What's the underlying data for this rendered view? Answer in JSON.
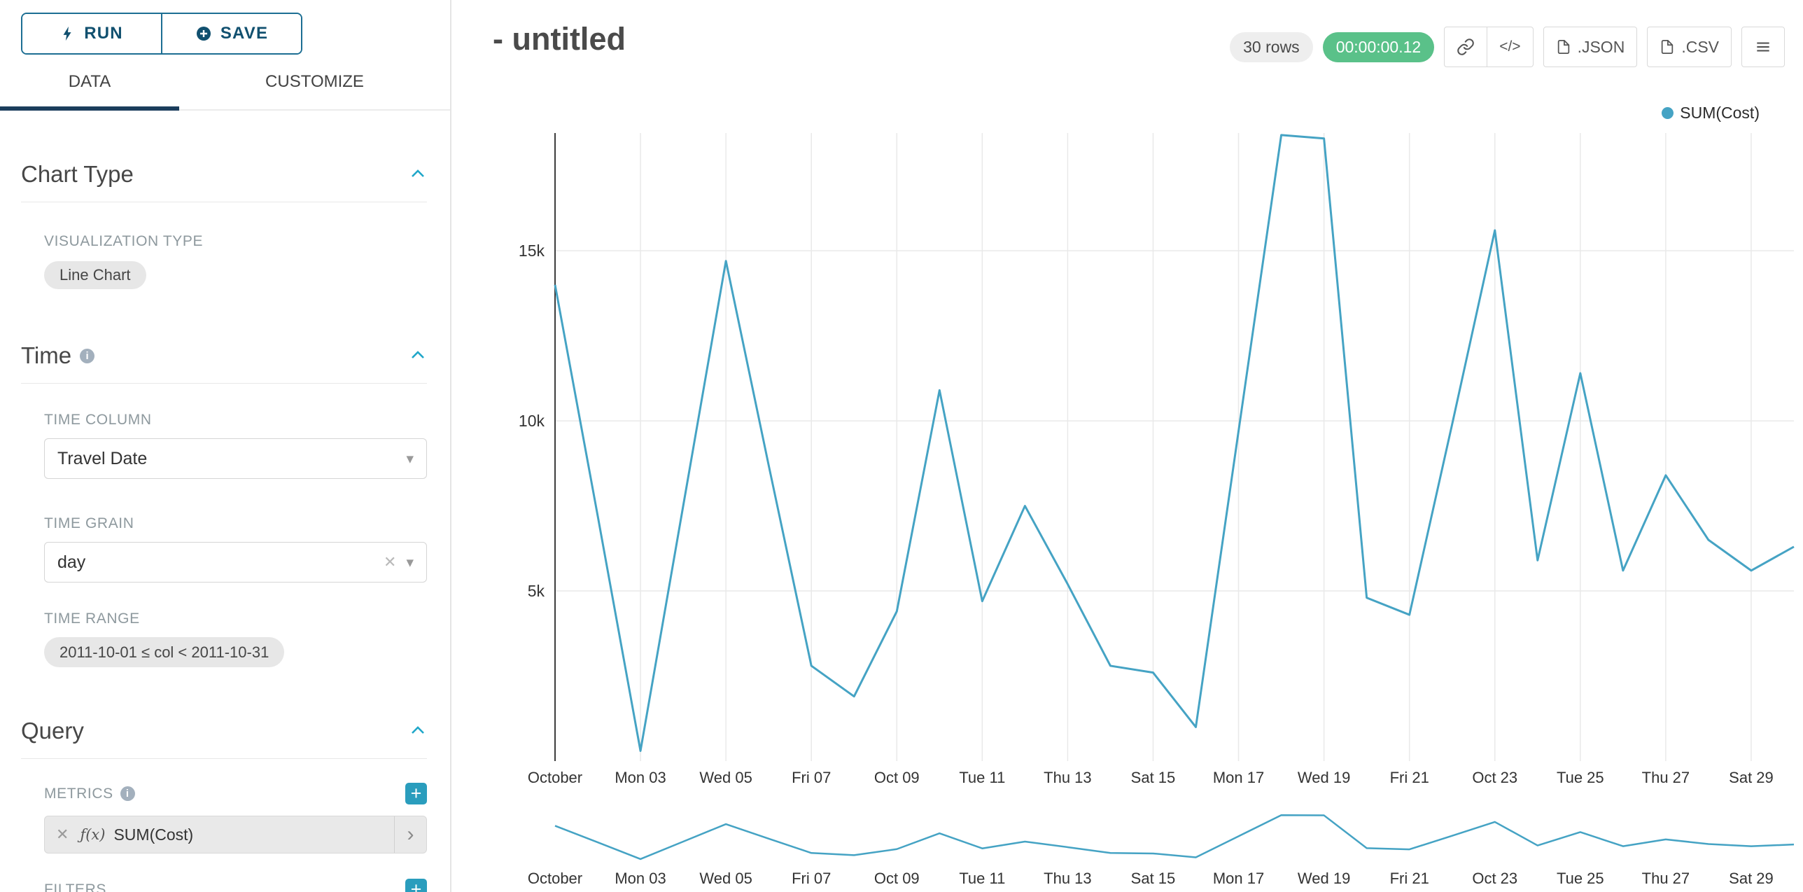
{
  "icons": {
    "plus": "+",
    "clear": "✕",
    "caret_down": "▾",
    "chevron_right": "›",
    "code": "</>",
    "info": "i"
  },
  "sidebar": {
    "run_label": "RUN",
    "save_label": "SAVE",
    "tabs": [
      {
        "label": "DATA",
        "active": true
      },
      {
        "label": "CUSTOMIZE",
        "active": false
      }
    ],
    "sections": {
      "chart_type": {
        "title": "Chart Type",
        "viz_type_label": "VISUALIZATION TYPE",
        "viz_type_value": "Line Chart"
      },
      "time": {
        "title": "Time",
        "time_column_label": "TIME COLUMN",
        "time_column_value": "Travel Date",
        "time_grain_label": "TIME GRAIN",
        "time_grain_value": "day",
        "time_range_label": "TIME RANGE",
        "time_range_value": "2011-10-01 ≤ col < 2011-10-31"
      },
      "query": {
        "title": "Query",
        "metrics_label": "METRICS",
        "metric_fx": "ƒ(x)",
        "metric_value": "SUM(Cost)",
        "filters_label": "FILTERS"
      }
    }
  },
  "header": {
    "title": "- untitled",
    "rows_badge": "30 rows",
    "timer_badge": "00:00:00.12",
    "json_label": ".JSON",
    "csv_label": ".CSV"
  },
  "legend": {
    "label": "SUM(Cost)",
    "color": "#45a3c4"
  },
  "chart_data": {
    "type": "line",
    "title": "- untitled",
    "xlabel": "",
    "ylabel": "",
    "line_color": "#45a3c4",
    "grid": true,
    "legend_position": "top-right",
    "has_mini_preview": true,
    "ylim": [
      0,
      18460
    ],
    "y_ticks": [
      {
        "label": "5k",
        "value": 5000
      },
      {
        "label": "10k",
        "value": 10000
      },
      {
        "label": "15k",
        "value": 15000
      }
    ],
    "x_tick_labels": [
      "October",
      "Mon 03",
      "Wed 05",
      "Fri 07",
      "Oct 09",
      "Tue 11",
      "Thu 13",
      "Sat 15",
      "Mon 17",
      "Wed 19",
      "Fri 21",
      "Oct 23",
      "Tue 25",
      "Thu 27",
      "Sat 29"
    ],
    "x": [
      "2011-10-01",
      "2011-10-02",
      "2011-10-03",
      "2011-10-04",
      "2011-10-05",
      "2011-10-06",
      "2011-10-07",
      "2011-10-08",
      "2011-10-09",
      "2011-10-10",
      "2011-10-11",
      "2011-10-12",
      "2011-10-13",
      "2011-10-14",
      "2011-10-15",
      "2011-10-16",
      "2011-10-17",
      "2011-10-18",
      "2011-10-19",
      "2011-10-20",
      "2011-10-21",
      "2011-10-22",
      "2011-10-23",
      "2011-10-24",
      "2011-10-25",
      "2011-10-26",
      "2011-10-27",
      "2011-10-28",
      "2011-10-29",
      "2011-10-30"
    ],
    "series": [
      {
        "name": "SUM(Cost)",
        "values": [
          14000,
          7200,
          300,
          7500,
          14700,
          8700,
          2800,
          1900,
          4400,
          10900,
          4700,
          7500,
          5200,
          2800,
          2600,
          1000,
          9700,
          18400,
          18300,
          4800,
          4300,
          9900,
          15600,
          5900,
          11400,
          5600,
          8400,
          6500,
          5600,
          6300
        ]
      }
    ]
  }
}
